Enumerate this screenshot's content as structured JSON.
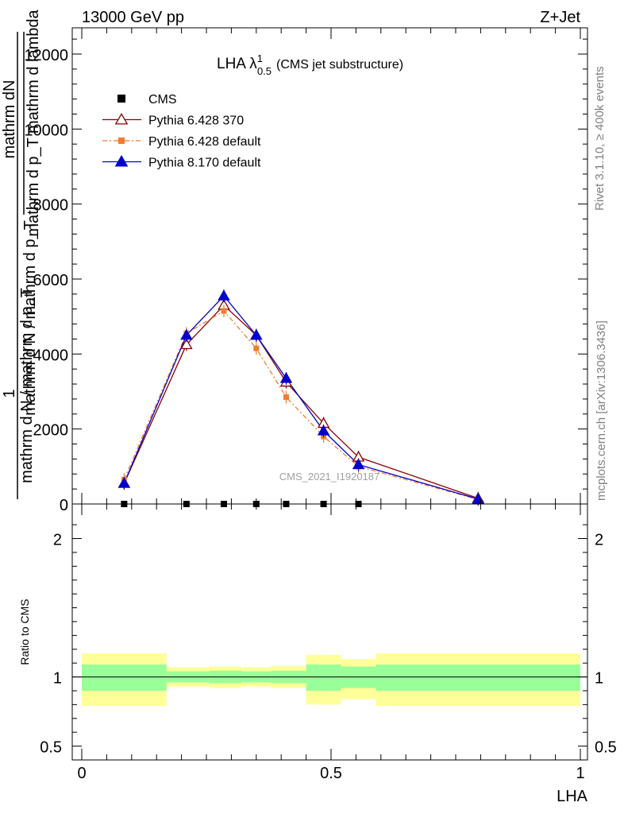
{
  "header": {
    "left": "13000 GeV pp",
    "right": "Z+Jet"
  },
  "side": {
    "top": "Rivet 3.1.10, ≥ 400k events",
    "bottom": "mcplots.cern.ch [arXiv:1306.3436]"
  },
  "chart_data": {
    "type": "line",
    "title_main": "LHA λ",
    "title_sup": "1",
    "title_sub": "0.5",
    "title_rest": "(CMS jet substructure)",
    "watermark": "CMS_2021_I1920187",
    "xlabel": "LHA",
    "xlim": [
      0,
      1
    ],
    "x_ticks": [
      {
        "v": 0,
        "label": "0"
      },
      {
        "v": 0.5,
        "label": "0.5"
      },
      {
        "v": 1,
        "label": "1"
      }
    ],
    "main_panel": {
      "ylabel_one": "1",
      "ylabel_num": "mathrm dN",
      "ylabel_den_a": "mathrm d p_T mathrm d lambda",
      "ylabel_den_b": "mathrm d N / mathrm d p_T",
      "ylabel_den_c": "mathrm d N / mathrm d p_T",
      "ylim": [
        0,
        12700
      ],
      "y_ticks": [
        {
          "v": 0,
          "label": "0"
        },
        {
          "v": 2000,
          "label": "2000"
        },
        {
          "v": 4000,
          "label": "4000"
        },
        {
          "v": 6000,
          "label": "6000"
        },
        {
          "v": 8000,
          "label": "8000"
        },
        {
          "v": 10000,
          "label": "10000"
        },
        {
          "v": 12000,
          "label": "12000"
        }
      ],
      "series": [
        {
          "name": "CMS",
          "color": "#000000",
          "marker": "square",
          "x": [
            0.085,
            0.21,
            0.285,
            0.35,
            0.41,
            0.485,
            0.555
          ],
          "y": [
            0,
            0,
            0,
            0,
            0,
            0,
            0
          ]
        },
        {
          "name": "Pythia 6.428 370",
          "color": "#8b0000",
          "marker": "open-triangle",
          "dash": "",
          "x": [
            0.085,
            0.21,
            0.285,
            0.35,
            0.41,
            0.485,
            0.555,
            0.795
          ],
          "y": [
            550,
            4250,
            5300,
            4500,
            3250,
            2150,
            1250,
            150
          ]
        },
        {
          "name": "Pythia 6.428 default",
          "color": "#f07c32",
          "marker": "square",
          "dash": "6,3,2,3",
          "x": [
            0.085,
            0.21,
            0.285,
            0.35,
            0.41,
            0.485,
            0.555,
            0.795
          ],
          "y": [
            650,
            4550,
            5150,
            4150,
            2850,
            1800,
            1000,
            120
          ]
        },
        {
          "name": "Pythia 8.170 default",
          "color": "#0000cc",
          "marker": "triangle",
          "dash": "",
          "x": [
            0.085,
            0.21,
            0.285,
            0.35,
            0.41,
            0.485,
            0.555,
            0.795
          ],
          "y": [
            550,
            4500,
            5550,
            4500,
            3350,
            1950,
            1050,
            130
          ]
        }
      ]
    },
    "ratio_panel": {
      "ylabel": "Ratio to CMS",
      "ylim": [
        0.4,
        2.25
      ],
      "y_ticks": [
        {
          "v": 0.5,
          "label": "0.5"
        },
        {
          "v": 1,
          "label": "1"
        },
        {
          "v": 2,
          "label": "2"
        }
      ],
      "bands": [
        {
          "x0": 0.0,
          "x1": 0.17,
          "green": [
            0.9,
            1.09
          ],
          "yellow": [
            0.79,
            1.17
          ]
        },
        {
          "x0": 0.17,
          "x1": 0.255,
          "green": [
            0.96,
            1.04
          ],
          "yellow": [
            0.93,
            1.07
          ]
        },
        {
          "x0": 0.255,
          "x1": 0.32,
          "green": [
            0.955,
            1.045
          ],
          "yellow": [
            0.92,
            1.075
          ]
        },
        {
          "x0": 0.32,
          "x1": 0.38,
          "green": [
            0.96,
            1.04
          ],
          "yellow": [
            0.93,
            1.07
          ]
        },
        {
          "x0": 0.38,
          "x1": 0.45,
          "green": [
            0.955,
            1.045
          ],
          "yellow": [
            0.92,
            1.08
          ]
        },
        {
          "x0": 0.45,
          "x1": 0.52,
          "green": [
            0.9,
            1.09
          ],
          "yellow": [
            0.8,
            1.16
          ]
        },
        {
          "x0": 0.52,
          "x1": 0.59,
          "green": [
            0.92,
            1.075
          ],
          "yellow": [
            0.84,
            1.13
          ]
        },
        {
          "x0": 0.59,
          "x1": 1.0,
          "green": [
            0.9,
            1.09
          ],
          "yellow": [
            0.79,
            1.17
          ]
        }
      ]
    }
  }
}
